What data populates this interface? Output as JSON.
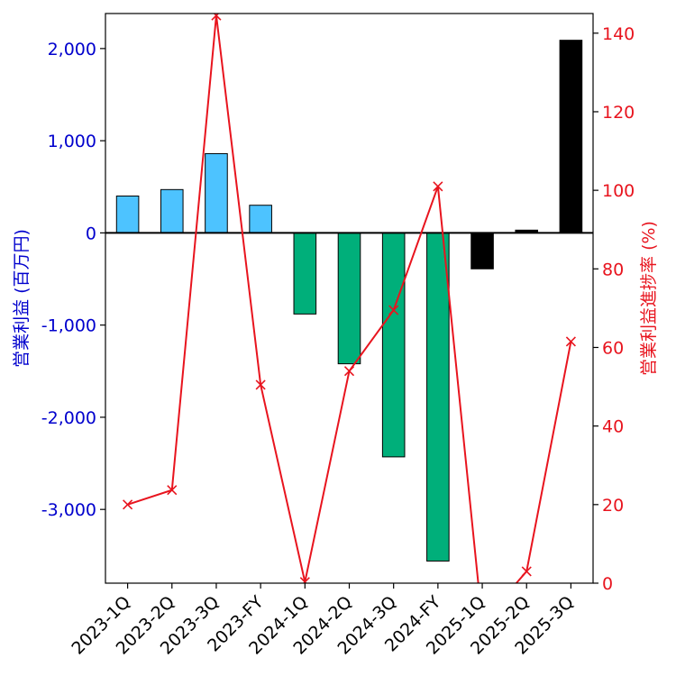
{
  "chart_data": {
    "type": "bar+line",
    "categories": [
      "2023-1Q",
      "2023-2Q",
      "2023-3Q",
      "2023-FY",
      "2024-1Q",
      "2024-2Q",
      "2024-3Q",
      "2024-FY",
      "2025-1Q",
      "2025-2Q",
      "2025-3Q"
    ],
    "series": [
      {
        "axis": "left",
        "type": "bar",
        "values": [
          400,
          470,
          860,
          300,
          -880,
          -1420,
          -2430,
          -3560,
          -390,
          30,
          2090
        ],
        "colors": [
          "#4DC3FF",
          "#4DC3FF",
          "#4DC3FF",
          "#4DC3FF",
          "#00AF7A",
          "#00AF7A",
          "#00AF7A",
          "#00AF7A",
          "#000000",
          "#000000",
          "#000000"
        ]
      },
      {
        "axis": "right",
        "type": "line",
        "color": "#E8141E",
        "values": [
          20.0,
          23.7,
          144.5,
          50.5,
          0.3,
          54.0,
          69.5,
          101.0,
          -10.0,
          3.0,
          61.5
        ]
      }
    ],
    "ylabel": "営業利益 (百万円)",
    "ylabel_right": "営業利益進捗率 (%)",
    "ylim": [
      -3800,
      2380
    ],
    "ylim_right": [
      0,
      145
    ],
    "yticks": [
      2000,
      1000,
      0,
      -1000,
      -2000,
      -3000
    ],
    "ytick_labels": [
      "2,000",
      "1,000",
      "0",
      "-1,000",
      "-2,000",
      "-3,000"
    ],
    "yticks_right": [
      0,
      20,
      40,
      60,
      80,
      100,
      120,
      140
    ],
    "ytick_labels_right": [
      "0",
      "20",
      "40",
      "60",
      "80",
      "100",
      "120",
      "140"
    ],
    "left_axis_color": "#0000CD",
    "right_axis_color": "#E8141E",
    "grid": false
  }
}
